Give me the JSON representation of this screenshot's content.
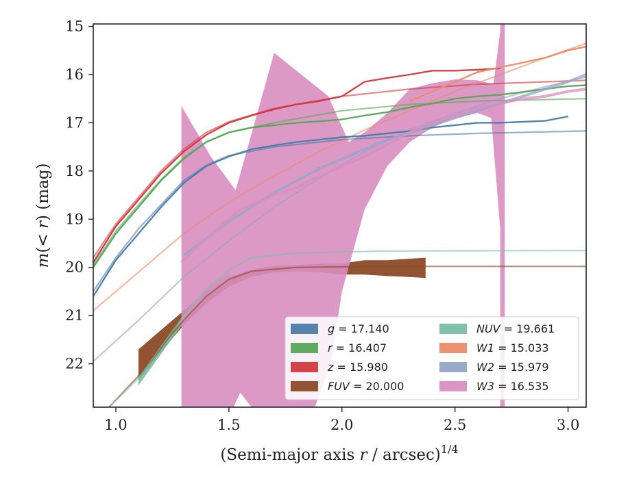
{
  "chart_data": {
    "type": "line",
    "xlabel": "(Semi-major axis r / arcsec)^1/4",
    "xlabel_parts": {
      "pre": "(Semi-major axis ",
      "var": "r",
      "mid": " / arcsec)",
      "sup": "1/4"
    },
    "ylabel": "m(<r) (mag)",
    "ylabel_parts": {
      "var": "m",
      "pre": "(",
      "lt": "<",
      "r": "r",
      "post": ") (mag)"
    },
    "xlim": [
      0.9,
      3.08
    ],
    "ylim": [
      22.9,
      14.95
    ],
    "y_inverted": true,
    "xticks": [
      1.0,
      1.5,
      2.0,
      2.5,
      3.0
    ],
    "xtick_labels": [
      "1.0",
      "1.5",
      "2.0",
      "2.5",
      "3.0"
    ],
    "yticks": [
      15,
      16,
      17,
      18,
      19,
      20,
      21,
      22
    ],
    "ytick_labels": [
      "15",
      "16",
      "17",
      "18",
      "19",
      "20",
      "21",
      "22"
    ],
    "legend_position": "lower-right",
    "series": [
      {
        "name": "g = 17.140",
        "band": "g",
        "value": "17.140",
        "color": "#4c7ca8",
        "data": [
          [
            0.9,
            20.6
          ],
          [
            1.0,
            19.85
          ],
          [
            1.1,
            19.3
          ],
          [
            1.2,
            18.75
          ],
          [
            1.3,
            18.25
          ],
          [
            1.4,
            17.9
          ],
          [
            1.5,
            17.7
          ],
          [
            1.6,
            17.55
          ],
          [
            1.7,
            17.47
          ],
          [
            1.8,
            17.4
          ],
          [
            1.9,
            17.35
          ],
          [
            2.0,
            17.3
          ],
          [
            2.1,
            17.27
          ],
          [
            2.2,
            17.22
          ],
          [
            2.3,
            17.17
          ],
          [
            2.4,
            17.1
          ],
          [
            2.5,
            17.05
          ],
          [
            2.6,
            17.0
          ],
          [
            2.7,
            17.0
          ],
          [
            2.8,
            16.98
          ],
          [
            2.9,
            16.96
          ],
          [
            3.0,
            16.87
          ]
        ],
        "model": [
          [
            0.9,
            20.5
          ],
          [
            1.0,
            19.8
          ],
          [
            1.1,
            19.2
          ],
          [
            1.2,
            18.7
          ],
          [
            1.3,
            18.2
          ],
          [
            1.4,
            17.88
          ],
          [
            1.5,
            17.68
          ],
          [
            1.7,
            17.5
          ],
          [
            2.0,
            17.35
          ],
          [
            2.3,
            17.27
          ],
          [
            2.6,
            17.22
          ],
          [
            3.08,
            17.17
          ]
        ]
      },
      {
        "name": "r = 16.407",
        "band": "r",
        "value": "16.407",
        "color": "#5aa55a",
        "data": [
          [
            0.9,
            20.0
          ],
          [
            1.0,
            19.3
          ],
          [
            1.1,
            18.75
          ],
          [
            1.2,
            18.2
          ],
          [
            1.3,
            17.75
          ],
          [
            1.4,
            17.4
          ],
          [
            1.5,
            17.2
          ],
          [
            1.6,
            17.1
          ],
          [
            1.7,
            17.05
          ],
          [
            1.8,
            17.0
          ],
          [
            1.9,
            16.97
          ],
          [
            2.0,
            16.93
          ],
          [
            2.1,
            16.85
          ],
          [
            2.2,
            16.78
          ],
          [
            2.3,
            16.68
          ],
          [
            2.4,
            16.6
          ],
          [
            2.5,
            16.5
          ],
          [
            2.6,
            16.45
          ],
          [
            2.7,
            16.42
          ],
          [
            2.8,
            16.36
          ],
          [
            2.9,
            16.3
          ],
          [
            3.0,
            16.24
          ],
          [
            3.08,
            16.22
          ]
        ],
        "model": [
          [
            0.9,
            19.95
          ],
          [
            1.0,
            19.25
          ],
          [
            1.1,
            18.7
          ],
          [
            1.2,
            18.18
          ],
          [
            1.3,
            17.72
          ],
          [
            1.4,
            17.4
          ],
          [
            1.5,
            17.2
          ],
          [
            1.7,
            17.0
          ],
          [
            2.0,
            16.75
          ],
          [
            2.3,
            16.62
          ],
          [
            2.6,
            16.55
          ],
          [
            3.08,
            16.5
          ]
        ]
      },
      {
        "name": "z = 15.980",
        "band": "z",
        "value": "15.980",
        "color": "#d1383e",
        "data": [
          [
            0.9,
            19.9
          ],
          [
            1.0,
            19.15
          ],
          [
            1.1,
            18.6
          ],
          [
            1.2,
            18.05
          ],
          [
            1.3,
            17.6
          ],
          [
            1.4,
            17.25
          ],
          [
            1.5,
            17.0
          ],
          [
            1.6,
            16.85
          ],
          [
            1.7,
            16.72
          ],
          [
            1.8,
            16.62
          ],
          [
            1.9,
            16.55
          ],
          [
            2.0,
            16.45
          ],
          [
            2.1,
            16.15
          ],
          [
            2.2,
            16.07
          ],
          [
            2.3,
            16.0
          ],
          [
            2.4,
            15.92
          ],
          [
            2.5,
            15.92
          ],
          [
            2.6,
            15.9
          ],
          [
            2.7,
            15.87
          ]
        ],
        "model": [
          [
            0.9,
            19.8
          ],
          [
            1.0,
            19.1
          ],
          [
            1.1,
            18.55
          ],
          [
            1.2,
            18.0
          ],
          [
            1.3,
            17.55
          ],
          [
            1.4,
            17.2
          ],
          [
            1.5,
            16.98
          ],
          [
            1.7,
            16.7
          ],
          [
            2.0,
            16.45
          ],
          [
            2.3,
            16.3
          ],
          [
            2.6,
            16.2
          ],
          [
            3.08,
            16.12
          ]
        ]
      },
      {
        "name": "FUV = 20.000",
        "band": "FUV",
        "value": "20.000",
        "color": "#8b4a26",
        "band_upper": [
          [
            1.1,
            21.7
          ],
          [
            1.2,
            21.3
          ],
          [
            1.3,
            20.9
          ],
          [
            1.4,
            20.5
          ],
          [
            1.5,
            20.2
          ],
          [
            1.6,
            20.05
          ],
          [
            1.7,
            19.97
          ],
          [
            1.8,
            19.95
          ],
          [
            1.9,
            19.93
          ],
          [
            2.0,
            19.92
          ],
          [
            2.1,
            19.85
          ],
          [
            2.2,
            19.85
          ],
          [
            2.3,
            19.82
          ],
          [
            2.37,
            19.8
          ]
        ],
        "band_lower": [
          [
            1.1,
            22.35
          ],
          [
            1.2,
            21.75
          ],
          [
            1.3,
            21.2
          ],
          [
            1.4,
            20.75
          ],
          [
            1.5,
            20.4
          ],
          [
            1.6,
            20.2
          ],
          [
            1.7,
            20.1
          ],
          [
            1.8,
            20.08
          ],
          [
            1.9,
            20.1
          ],
          [
            2.0,
            20.15
          ],
          [
            2.1,
            20.15
          ],
          [
            2.2,
            20.18
          ],
          [
            2.3,
            20.2
          ],
          [
            2.37,
            20.22
          ]
        ],
        "model": [
          [
            0.97,
            22.9
          ],
          [
            1.1,
            22.25
          ],
          [
            1.2,
            21.65
          ],
          [
            1.3,
            21.1
          ],
          [
            1.4,
            20.6
          ],
          [
            1.5,
            20.25
          ],
          [
            1.6,
            20.08
          ],
          [
            1.8,
            20.0
          ],
          [
            2.2,
            19.98
          ],
          [
            3.08,
            19.98
          ]
        ]
      },
      {
        "name": "NUV = 19.661",
        "band": "NUV",
        "value": "19.661",
        "color": "#7bbfa6",
        "band_upper": [
          [
            1.1,
            22.3
          ],
          [
            1.2,
            21.7
          ],
          [
            1.3,
            21.0
          ],
          [
            1.4,
            20.45
          ],
          [
            1.5,
            20.1
          ]
        ],
        "band_lower": [
          [
            1.1,
            22.45
          ],
          [
            1.2,
            21.8
          ],
          [
            1.3,
            21.15
          ],
          [
            1.4,
            20.6
          ],
          [
            1.5,
            20.25
          ]
        ],
        "model": [
          [
            0.97,
            22.9
          ],
          [
            1.1,
            22.3
          ],
          [
            1.2,
            21.65
          ],
          [
            1.3,
            21.0
          ],
          [
            1.4,
            20.45
          ],
          [
            1.5,
            20.05
          ],
          [
            1.6,
            19.8
          ],
          [
            1.8,
            19.7
          ],
          [
            2.2,
            19.66
          ],
          [
            3.08,
            19.65
          ]
        ]
      },
      {
        "name": "W1 = 15.033",
        "band": "W1",
        "value": "15.033",
        "color": "#eb8c6a",
        "data": [
          [
            2.3,
            16.55
          ],
          [
            2.4,
            16.35
          ],
          [
            2.5,
            16.15
          ],
          [
            2.6,
            15.95
          ],
          [
            2.7,
            15.85
          ],
          [
            2.8,
            15.75
          ],
          [
            2.9,
            15.65
          ],
          [
            3.0,
            15.5
          ],
          [
            3.08,
            15.42
          ]
        ],
        "model": [
          [
            0.9,
            20.9
          ],
          [
            1.1,
            20.1
          ],
          [
            1.3,
            19.3
          ],
          [
            1.5,
            18.65
          ],
          [
            1.7,
            18.1
          ],
          [
            1.9,
            17.6
          ],
          [
            2.1,
            17.15
          ],
          [
            2.3,
            16.75
          ],
          [
            2.5,
            16.35
          ],
          [
            2.7,
            16.0
          ],
          [
            2.9,
            15.65
          ],
          [
            3.08,
            15.35
          ]
        ]
      },
      {
        "name": "W2 = 15.979",
        "band": "W2",
        "value": "15.979",
        "color": "#95a5c7",
        "data": [
          [
            1.3,
            19.75
          ],
          [
            1.4,
            19.4
          ],
          [
            1.5,
            19.05
          ],
          [
            1.6,
            18.75
          ],
          [
            1.7,
            18.45
          ],
          [
            1.8,
            18.2
          ],
          [
            1.9,
            17.95
          ],
          [
            2.0,
            17.75
          ],
          [
            2.1,
            17.55
          ],
          [
            2.2,
            17.35
          ],
          [
            2.3,
            17.2
          ],
          [
            2.4,
            17.05
          ],
          [
            2.5,
            16.9
          ],
          [
            2.6,
            16.75
          ],
          [
            2.7,
            16.6
          ],
          [
            2.8,
            16.45
          ],
          [
            2.9,
            16.3
          ],
          [
            3.0,
            16.15
          ],
          [
            3.08,
            16.0
          ]
        ],
        "model": [
          [
            0.9,
            21.95
          ],
          [
            1.1,
            21.1
          ],
          [
            1.3,
            20.2
          ],
          [
            1.5,
            19.45
          ],
          [
            1.7,
            18.75
          ],
          [
            1.9,
            18.15
          ],
          [
            2.1,
            17.6
          ],
          [
            2.3,
            17.15
          ],
          [
            2.5,
            16.8
          ],
          [
            2.7,
            16.5
          ],
          [
            2.9,
            16.25
          ],
          [
            3.08,
            16.05
          ]
        ]
      },
      {
        "name": "W3 = 16.535",
        "band": "W3",
        "value": "16.535",
        "color": "#d98ec0",
        "band_upper": [
          [
            1.29,
            16.65
          ],
          [
            1.42,
            17.7
          ],
          [
            1.53,
            18.4
          ],
          [
            1.7,
            15.55
          ],
          [
            1.94,
            16.45
          ],
          [
            2.03,
            17.4
          ],
          [
            2.1,
            17.2
          ],
          [
            2.2,
            16.8
          ],
          [
            2.3,
            16.3
          ],
          [
            2.4,
            16.18
          ],
          [
            2.5,
            16.1
          ],
          [
            2.6,
            16.12
          ],
          [
            2.67,
            16.2
          ],
          [
            2.7,
            15.1
          ],
          [
            2.7,
            14.95
          ],
          [
            2.72,
            14.95
          ],
          [
            2.72,
            22.9
          ]
        ],
        "band_lower": [
          [
            1.29,
            22.9
          ],
          [
            1.52,
            22.9
          ],
          [
            1.55,
            22.6
          ],
          [
            1.6,
            22.9
          ],
          [
            1.88,
            22.9
          ],
          [
            1.95,
            22.0
          ],
          [
            2.0,
            20.5
          ],
          [
            2.1,
            18.8
          ],
          [
            2.2,
            17.9
          ],
          [
            2.3,
            17.4
          ],
          [
            2.4,
            17.1
          ],
          [
            2.5,
            16.9
          ],
          [
            2.6,
            16.8
          ],
          [
            2.66,
            16.9
          ],
          [
            2.7,
            19.2
          ],
          [
            2.7,
            22.9
          ]
        ],
        "data": [
          [
            1.29,
            19.9
          ],
          [
            1.4,
            19.4
          ],
          [
            1.55,
            18.8
          ],
          [
            1.7,
            18.5
          ],
          [
            1.8,
            18.35
          ],
          [
            1.9,
            18.1
          ],
          [
            2.0,
            17.9
          ],
          [
            2.1,
            17.7
          ],
          [
            2.2,
            17.45
          ],
          [
            2.3,
            17.2
          ],
          [
            2.4,
            17.0
          ],
          [
            2.5,
            16.85
          ],
          [
            2.6,
            16.7
          ],
          [
            2.7,
            16.6
          ],
          [
            2.8,
            16.5
          ],
          [
            2.9,
            16.45
          ],
          [
            3.0,
            16.35
          ],
          [
            3.08,
            16.3
          ]
        ]
      }
    ]
  }
}
